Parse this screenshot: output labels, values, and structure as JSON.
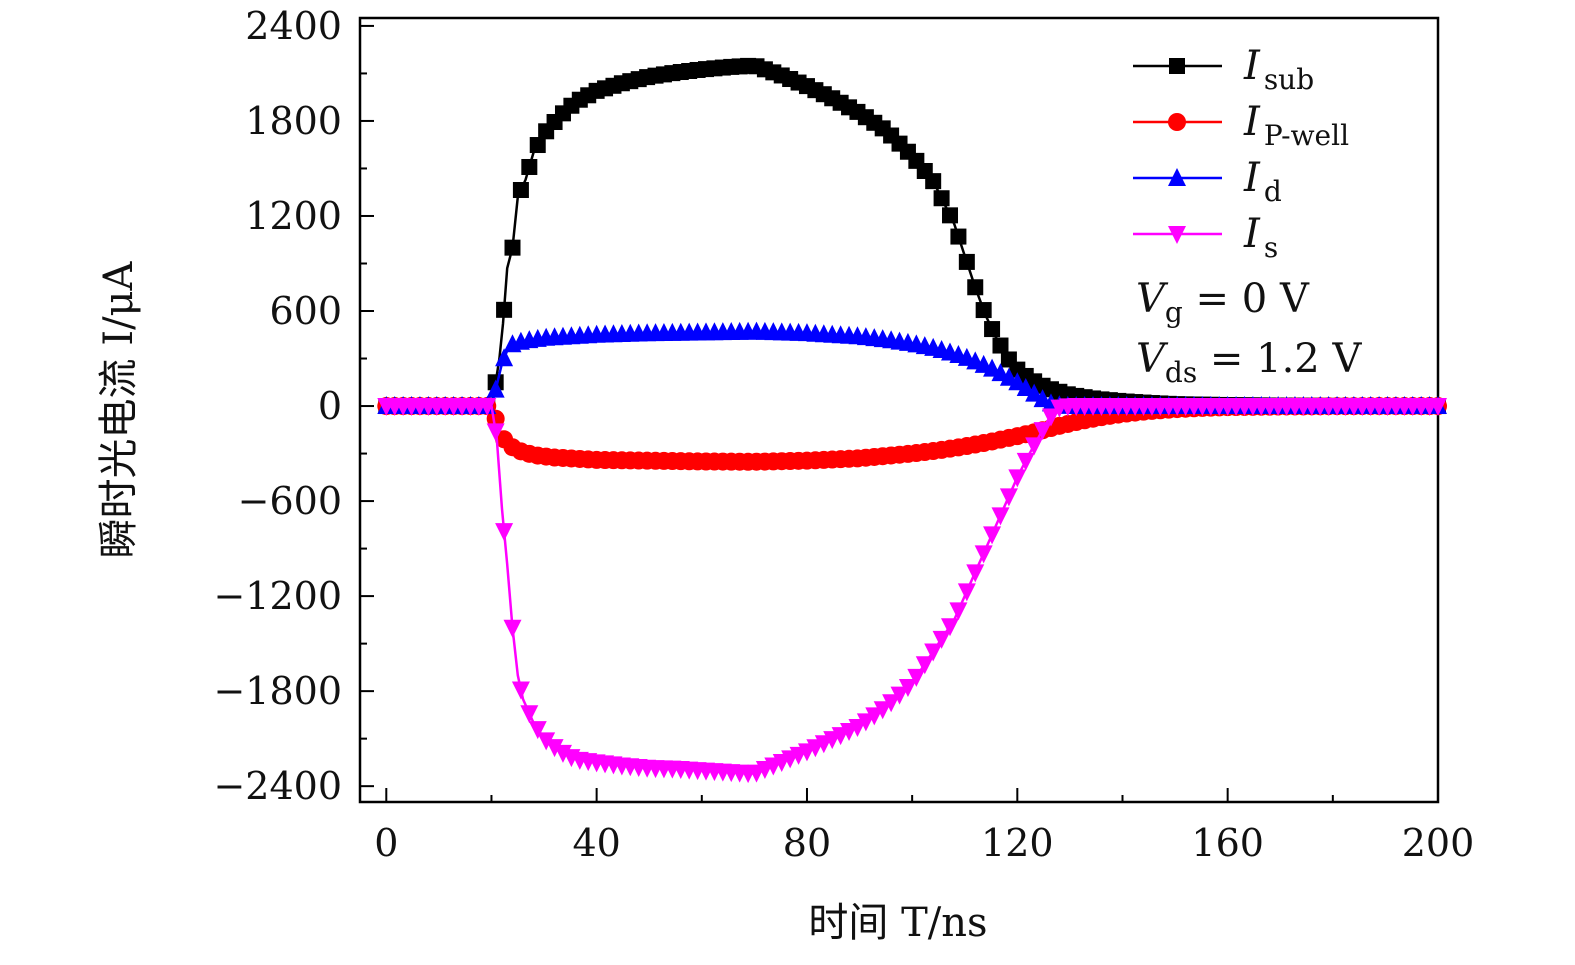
{
  "chart_data": {
    "type": "line",
    "xlabel": "时间 T/ns",
    "ylabel": "瞬时光电流 I/μA",
    "xlim": [
      -5,
      200
    ],
    "ylim": [
      -2500,
      2450
    ],
    "xticks": [
      0,
      40,
      80,
      120,
      160,
      200
    ],
    "yticks": [
      -2400,
      -1800,
      -1200,
      -600,
      0,
      600,
      1200,
      1800,
      2400
    ],
    "xtick_labels": [
      "0",
      "40",
      "80",
      "120",
      "160",
      "200"
    ],
    "ytick_labels": [
      "−2400",
      "−1800",
      "−1200",
      "−600",
      "0",
      "600",
      "1200",
      "1800",
      "2400"
    ],
    "grid": false,
    "legend_position": "top-right",
    "legend": [
      {
        "main": "I",
        "sub": "sub"
      },
      {
        "main": "I",
        "sub": "P-well"
      },
      {
        "main": "I",
        "sub": "d"
      },
      {
        "main": "I",
        "sub": "s"
      }
    ],
    "annotations": [
      {
        "main": "V",
        "sub": "g",
        "rest": " = 0 V"
      },
      {
        "main": "V",
        "sub": "ds",
        "rest": " = 1.2 V"
      }
    ],
    "series": [
      {
        "name": "I_sub",
        "color": "#000000",
        "marker": "square",
        "x": [
          0,
          20,
          20.8,
          21.5,
          22.2,
          23,
          24,
          25,
          26.5,
          28,
          30,
          33,
          36,
          40,
          45,
          50,
          55,
          60,
          65,
          70,
          75,
          80,
          85,
          90,
          95,
          100,
          104,
          108,
          110,
          112,
          114,
          116,
          118,
          120,
          122,
          124,
          126,
          128,
          130,
          135,
          140,
          145,
          150,
          160,
          170,
          180,
          190,
          200
        ],
        "y": [
          0,
          0,
          150,
          300,
          520,
          870,
          1000,
          1320,
          1430,
          1600,
          1720,
          1830,
          1920,
          1990,
          2040,
          2080,
          2105,
          2125,
          2140,
          2150,
          2090,
          2020,
          1940,
          1850,
          1740,
          1580,
          1420,
          1150,
          950,
          750,
          570,
          430,
          310,
          230,
          180,
          140,
          110,
          90,
          70,
          45,
          30,
          20,
          12,
          6,
          3,
          1,
          0,
          0
        ]
      },
      {
        "name": "I_P-well",
        "color": "#ff0000",
        "marker": "circle",
        "x": [
          0,
          20,
          21,
          22,
          23,
          25,
          28,
          32,
          40,
          50,
          60,
          70,
          80,
          90,
          95,
          100,
          105,
          110,
          115,
          120,
          124,
          128,
          132,
          136,
          140,
          145,
          150,
          155,
          160,
          170,
          180,
          190,
          200
        ],
        "y": [
          0,
          0,
          -100,
          -190,
          -240,
          -280,
          -310,
          -325,
          -340,
          -345,
          -350,
          -352,
          -345,
          -330,
          -315,
          -300,
          -280,
          -255,
          -225,
          -190,
          -160,
          -125,
          -95,
          -70,
          -50,
          -32,
          -20,
          -12,
          -7,
          -3,
          -1,
          0,
          0
        ]
      },
      {
        "name": "I_d",
        "color": "#0000ff",
        "marker": "triangle-up",
        "x": [
          0,
          20,
          21,
          22,
          23,
          24,
          26,
          28,
          30,
          35,
          40,
          50,
          60,
          70,
          80,
          90,
          95,
          100,
          105,
          110,
          115,
          120,
          124,
          126,
          128,
          130,
          135,
          140,
          150,
          160,
          170,
          180,
          190,
          200
        ],
        "y": [
          0,
          0,
          130,
          270,
          350,
          390,
          410,
          420,
          430,
          440,
          450,
          460,
          465,
          470,
          460,
          440,
          420,
          395,
          360,
          310,
          240,
          150,
          60,
          20,
          5,
          0,
          0,
          0,
          0,
          0,
          0,
          0,
          0,
          0
        ]
      },
      {
        "name": "I_s",
        "color": "#ff00ff",
        "marker": "triangle-down",
        "x": [
          0,
          20,
          21,
          22,
          23,
          24,
          25,
          26,
          28,
          30,
          33,
          36,
          40,
          45,
          50,
          55,
          60,
          65,
          70,
          75,
          80,
          85,
          90,
          95,
          100,
          104,
          108,
          110,
          112,
          114,
          116,
          118,
          120,
          122,
          124,
          126,
          128,
          130,
          140,
          150,
          160,
          170,
          180,
          190,
          200
        ],
        "y": [
          0,
          0,
          -200,
          -650,
          -1000,
          -1400,
          -1700,
          -1850,
          -2000,
          -2100,
          -2180,
          -2230,
          -2250,
          -2270,
          -2285,
          -2290,
          -2300,
          -2310,
          -2320,
          -2250,
          -2180,
          -2100,
          -2020,
          -1900,
          -1750,
          -1550,
          -1350,
          -1200,
          -1050,
          -900,
          -750,
          -600,
          -450,
          -320,
          -200,
          -80,
          -10,
          0,
          0,
          0,
          0,
          0,
          0,
          0,
          0
        ]
      }
    ]
  }
}
